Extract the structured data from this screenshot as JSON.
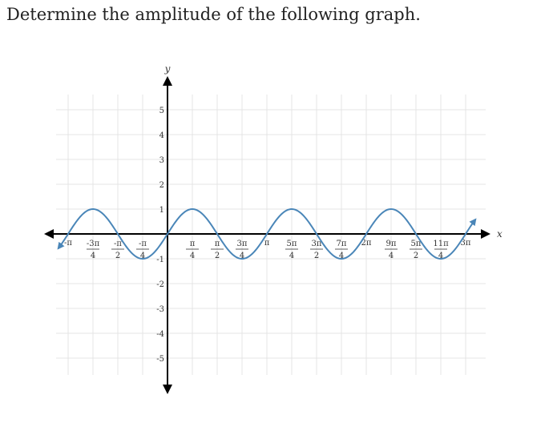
{
  "question": "Determine the amplitude of the following graph.",
  "chart_data": {
    "type": "line",
    "title": "",
    "xlabel": "x",
    "ylabel": "y",
    "x_unit": "π",
    "xlim": [
      -1.15,
      3.2
    ],
    "ylim": [
      -6,
      6
    ],
    "grid": true,
    "arrows_on_curve": true,
    "x_tick_step": 0.25,
    "x_ticks": [
      {
        "x": -1,
        "label": "-π"
      },
      {
        "x": -0.75,
        "num": "-3π",
        "den": "4"
      },
      {
        "x": -0.5,
        "num": "-π",
        "den": "2"
      },
      {
        "x": -0.25,
        "num": "-π",
        "den": "4"
      },
      {
        "x": 0.25,
        "num": "π",
        "den": "4"
      },
      {
        "x": 0.5,
        "num": "π",
        "den": "2"
      },
      {
        "x": 0.75,
        "num": "3π",
        "den": "4"
      },
      {
        "x": 1,
        "label": "π"
      },
      {
        "x": 1.25,
        "num": "5π",
        "den": "4"
      },
      {
        "x": 1.5,
        "num": "3π",
        "den": "2"
      },
      {
        "x": 1.75,
        "num": "7π",
        "den": "4"
      },
      {
        "x": 2,
        "label": "2π"
      },
      {
        "x": 2.25,
        "num": "9π",
        "den": "4"
      },
      {
        "x": 2.5,
        "num": "5π",
        "den": "2"
      },
      {
        "x": 2.75,
        "num": "11π",
        "den": "4"
      },
      {
        "x": 3,
        "label": "3π"
      }
    ],
    "y_ticks": [
      {
        "y": 5,
        "label": "5"
      },
      {
        "y": 4,
        "label": "4"
      },
      {
        "y": 3,
        "label": "3"
      },
      {
        "y": 2,
        "label": "2"
      },
      {
        "y": 1,
        "label": "1"
      },
      {
        "y": -1,
        "label": "-1"
      },
      {
        "y": -2,
        "label": "-2"
      },
      {
        "y": -3,
        "label": "-3"
      },
      {
        "y": -4,
        "label": "-4"
      },
      {
        "y": -5,
        "label": "-5"
      }
    ],
    "series": [
      {
        "amplitude": 1,
        "period_pi": 1,
        "domain_pi": [
          -1.1,
          3.1
        ],
        "color": "#4a86b8"
      }
    ]
  }
}
